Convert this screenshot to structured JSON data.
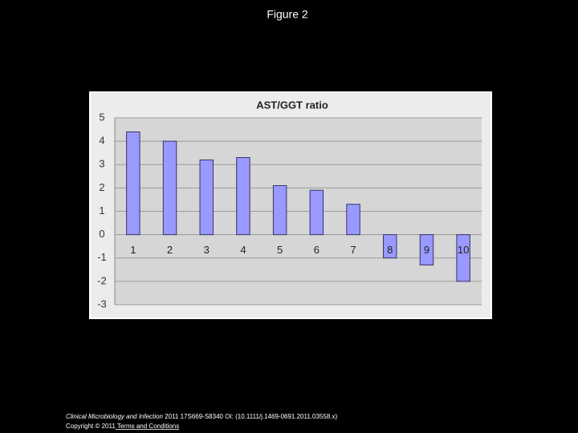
{
  "slide_title": "Figure 2",
  "chart_data": {
    "type": "bar",
    "title": "AST/GGT ratio",
    "categories": [
      "1",
      "2",
      "3",
      "4",
      "5",
      "6",
      "7",
      "8",
      "9",
      "10"
    ],
    "values": [
      4.4,
      4.0,
      3.2,
      3.3,
      2.1,
      1.9,
      1.3,
      -1.0,
      -1.3,
      -2.0
    ],
    "color": "#9999ff",
    "ylim": [
      -3,
      5
    ],
    "yticks": [
      -3,
      -2,
      -1,
      0,
      1,
      2,
      3,
      4,
      5
    ],
    "grid": true
  },
  "footer": {
    "journal": "Clinical Microbiology and Infection",
    "citation": " 2011 17S669-S8340 OI: (10.1111/j.1469-0691.2011.03558.x)",
    "copyright": "Copyright © 2011",
    "link": " Terms and Conditions"
  }
}
